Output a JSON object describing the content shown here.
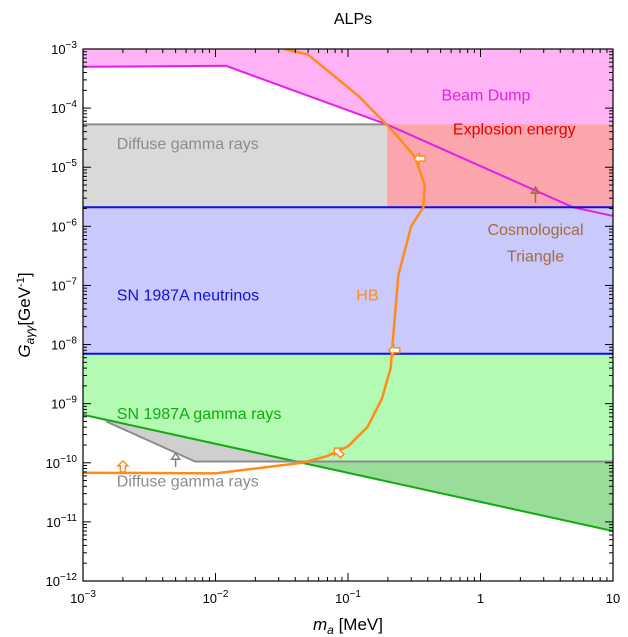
{
  "chart_data": {
    "type": "area",
    "title": "ALPs",
    "xlabel": "m_a [MeV]",
    "ylabel": "G_aγγ[GeV^-1]",
    "xscale": "log",
    "yscale": "log",
    "xlim": [
      0.001,
      10
    ],
    "ylim": [
      1e-12,
      0.001
    ],
    "x_ticks": [
      {
        "value": 0.001,
        "base": "10",
        "exp": "−3"
      },
      {
        "value": 0.01,
        "base": "10",
        "exp": "−2"
      },
      {
        "value": 0.1,
        "base": "10",
        "exp": "−1"
      },
      {
        "value": 1,
        "base": "1",
        "exp": ""
      },
      {
        "value": 10,
        "base": "10",
        "exp": ""
      }
    ],
    "y_ticks": [
      {
        "value": 1e-12,
        "base": "10",
        "exp": "−12"
      },
      {
        "value": 1e-11,
        "base": "10",
        "exp": "−11"
      },
      {
        "value": 1e-10,
        "base": "10",
        "exp": "−10"
      },
      {
        "value": 1e-09,
        "base": "10",
        "exp": "−9"
      },
      {
        "value": 1e-08,
        "base": "10",
        "exp": "−8"
      },
      {
        "value": 1e-07,
        "base": "10",
        "exp": "−7"
      },
      {
        "value": 1e-06,
        "base": "10",
        "exp": "−6"
      },
      {
        "value": 1e-05,
        "base": "10",
        "exp": "−5"
      },
      {
        "value": 0.0001,
        "base": "10",
        "exp": "−4"
      },
      {
        "value": 0.001,
        "base": "10",
        "exp": "−3"
      }
    ],
    "regions": [
      {
        "name": "Beam Dump",
        "fill": "#ffb3f5",
        "stroke": "#e61ee6",
        "points": [
          [
            0.001,
            0.0005
          ],
          [
            0.012,
            0.00052
          ],
          [
            0.2,
            5.2e-05
          ],
          [
            5,
            2.1e-06
          ],
          [
            10,
            1.5e-06
          ],
          [
            10,
            0.001
          ],
          [
            0.001,
            0.001
          ]
        ]
      },
      {
        "name": "Diffuse gamma rays",
        "fill": "#d9d9d9",
        "stroke": "#8c8c8c",
        "points": [
          [
            0.001,
            5.3e-05
          ],
          [
            0.2,
            5.3e-05
          ],
          [
            0.2,
            2.1e-06
          ],
          [
            0.001,
            2.1e-06
          ]
        ]
      },
      {
        "name": "Explosion energy",
        "fill": "#fba5ad",
        "stroke": "#e60000",
        "points": [
          [
            0.2,
            5.3e-05
          ],
          [
            10,
            5.3e-05
          ],
          [
            10,
            2.1e-06
          ],
          [
            0.2,
            2.1e-06
          ]
        ]
      },
      {
        "name": "SN 1987A neutrinos",
        "fill": "#c9c9fb",
        "stroke": "#1010e0",
        "points": [
          [
            0.001,
            2.1e-06
          ],
          [
            10,
            2.1e-06
          ],
          [
            10,
            7e-09
          ],
          [
            0.001,
            7e-09
          ]
        ]
      },
      {
        "name": "SN 1987A gamma rays",
        "fill": "#b3fbb3",
        "stroke": "#11aa11",
        "points": [
          [
            0.001,
            7e-09
          ],
          [
            10,
            7e-09
          ],
          [
            10,
            1.05e-10
          ],
          [
            0.04,
            1.05e-10
          ],
          [
            0.001,
            6.5e-10
          ]
        ]
      },
      {
        "name": "SN 1987A gamma rays lower",
        "fill": "#99dd99",
        "stroke": "none",
        "points": [
          [
            0.04,
            1.05e-10
          ],
          [
            10,
            1.05e-10
          ],
          [
            10,
            7e-12
          ]
        ]
      },
      {
        "name": "Diffuse gamma rays lower",
        "fill": "#cfcfcf",
        "stroke": "none",
        "points": [
          [
            0.0015,
            5e-10
          ],
          [
            0.007,
            1.05e-10
          ],
          [
            0.04,
            1.05e-10
          ],
          [
            0.001,
            6.5e-10
          ]
        ]
      }
    ],
    "lines": [
      {
        "name": "Beam Dump boundary",
        "color": "#e61ee6",
        "width": 2,
        "points": [
          [
            0.001,
            0.0005
          ],
          [
            0.012,
            0.00052
          ],
          [
            0.2,
            5.2e-05
          ],
          [
            5,
            2.1e-06
          ],
          [
            10,
            1.5e-06
          ]
        ]
      },
      {
        "name": "Diffuse top",
        "color": "#8c8c8c",
        "width": 2,
        "points": [
          [
            0.001,
            5.3e-05
          ],
          [
            0.2,
            5.3e-05
          ]
        ]
      },
      {
        "name": "Diffuse right edge",
        "color": "#ff9999",
        "width": 1,
        "points": [
          [
            0.2,
            5.3e-05
          ],
          [
            0.2,
            2.1e-06
          ]
        ]
      },
      {
        "name": "Neutrino upper",
        "color": "#1010e0",
        "width": 2,
        "points": [
          [
            0.001,
            2.1e-06
          ],
          [
            10,
            2.1e-06
          ]
        ]
      },
      {
        "name": "Neutrino lower",
        "color": "#1010e0",
        "width": 2,
        "points": [
          [
            0.001,
            7e-09
          ],
          [
            10,
            7e-09
          ]
        ]
      },
      {
        "name": "Gamma boundary",
        "color": "#11aa11",
        "width": 2,
        "points": [
          [
            0.001,
            6.5e-10
          ],
          [
            10,
            7e-12
          ]
        ]
      },
      {
        "name": "Diffuse lower",
        "color": "#8c8c8c",
        "width": 2,
        "points": [
          [
            0.0015,
            5e-10
          ],
          [
            0.007,
            1.05e-10
          ],
          [
            10,
            1.05e-10
          ]
        ]
      },
      {
        "name": "HB",
        "color": "#ff8c1a",
        "width": 2.5,
        "points": [
          [
            0.001,
            6.8e-11
          ],
          [
            0.01,
            6.6e-11
          ],
          [
            0.02,
            8e-11
          ],
          [
            0.045,
            1e-10
          ],
          [
            0.07,
            1.3e-10
          ],
          [
            0.1,
            1.9e-10
          ],
          [
            0.14,
            4e-10
          ],
          [
            0.18,
            1.2e-09
          ],
          [
            0.21,
            4e-09
          ],
          [
            0.22,
            1.5e-08
          ],
          [
            0.24,
            1.5e-07
          ],
          [
            0.3,
            1e-06
          ],
          [
            0.37,
            2.1e-06
          ],
          [
            0.38,
            5e-06
          ],
          [
            0.32,
            1.5e-05
          ],
          [
            0.22,
            4e-05
          ],
          [
            0.12,
            0.00016
          ],
          [
            0.05,
            0.0008
          ],
          [
            0.033,
            0.001
          ]
        ]
      }
    ],
    "hb_arrows": [
      {
        "x": 0.002,
        "y": 8.5e-11,
        "dir": "up"
      },
      {
        "x": 0.085,
        "y": 1.5e-10,
        "dir": "up-left"
      },
      {
        "x": 0.225,
        "y": 8e-09,
        "dir": "left"
      },
      {
        "x": 0.35,
        "y": 1.4e-05,
        "dir": "left"
      }
    ],
    "pointer_arrows": [
      {
        "x": 2.6,
        "y": 2.5e-06,
        "x2": 2.6,
        "y2": 4.6e-06,
        "color": "#a66a3c"
      },
      {
        "x": 0.005,
        "y": 8.5e-11,
        "x2": 0.005,
        "y2": 1.45e-10,
        "color": "#808080"
      }
    ],
    "annotations": [
      {
        "text": "Beam Dump",
        "x": 1.1,
        "y": 0.00017,
        "color": "#e61ee6",
        "anchor": "middle"
      },
      {
        "text": "Diffuse gamma rays",
        "x": 0.0018,
        "y": 5.2e-05,
        "color": "#8c8c8c",
        "anchor": "start",
        "dy": 18
      },
      {
        "text": "Explosion energy",
        "x": 1.8,
        "y": 4.5e-05,
        "color": "#e60000",
        "anchor": "middle"
      },
      {
        "text": "Cosmological",
        "x": 2.6,
        "y": 9e-07,
        "color": "#a66a3c",
        "anchor": "middle"
      },
      {
        "text": "Triangle",
        "x": 2.6,
        "y": 3.2e-07,
        "color": "#a66a3c",
        "anchor": "middle"
      },
      {
        "text": "SN 1987A neutrinos",
        "x": 0.0018,
        "y": 7e-08,
        "color": "#1010e0",
        "anchor": "start"
      },
      {
        "text": "HB",
        "x": 0.14,
        "y": 7e-08,
        "color": "#ff8c1a",
        "anchor": "middle"
      },
      {
        "text": "SN 1987A gamma rays",
        "x": 0.0018,
        "y": 7e-10,
        "color": "#11aa11",
        "anchor": "start"
      },
      {
        "text": "Diffuse gamma rays",
        "x": 0.0018,
        "y": 5e-11,
        "color": "#8c8c8c",
        "anchor": "start"
      }
    ]
  }
}
